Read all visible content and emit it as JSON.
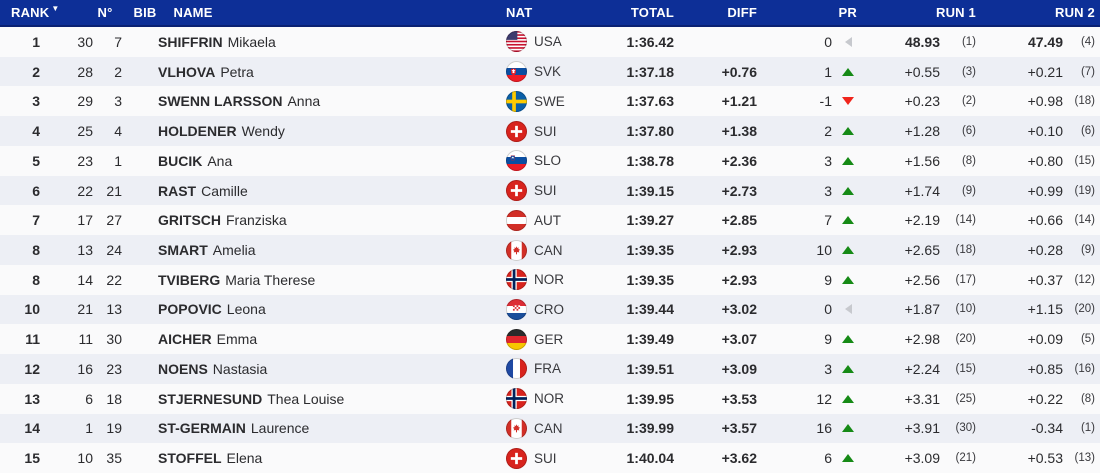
{
  "table": {
    "columns": {
      "rank": "RANK",
      "num": "N°",
      "bib": "BIB",
      "name": "NAME",
      "nat": "NAT",
      "total": "TOTAL",
      "diff": "DIFF",
      "pr": "PR",
      "run1": "RUN 1",
      "run2": "RUN 2"
    },
    "sort": {
      "column": "rank",
      "indicator": "▼"
    },
    "rows": [
      {
        "rank": "1",
        "num": "30",
        "bib": "7",
        "last": "SHIFFRIN",
        "first": "Mikaela",
        "nat": "USA",
        "total": "1:36.42",
        "diff": "",
        "pr": "0",
        "pr_dir": "neutral",
        "run1": "48.93",
        "run1_rank": "(1)",
        "run2": "47.49",
        "run2_rank": "(4)"
      },
      {
        "rank": "2",
        "num": "28",
        "bib": "2",
        "last": "VLHOVA",
        "first": "Petra",
        "nat": "SVK",
        "total": "1:37.18",
        "diff": "+0.76",
        "pr": "1",
        "pr_dir": "up",
        "run1": "+0.55",
        "run1_rank": "(3)",
        "run2": "+0.21",
        "run2_rank": "(7)"
      },
      {
        "rank": "3",
        "num": "29",
        "bib": "3",
        "last": "SWENN LARSSON",
        "first": "Anna",
        "nat": "SWE",
        "total": "1:37.63",
        "diff": "+1.21",
        "pr": "-1",
        "pr_dir": "down",
        "run1": "+0.23",
        "run1_rank": "(2)",
        "run2": "+0.98",
        "run2_rank": "(18)"
      },
      {
        "rank": "4",
        "num": "25",
        "bib": "4",
        "last": "HOLDENER",
        "first": "Wendy",
        "nat": "SUI",
        "total": "1:37.80",
        "diff": "+1.38",
        "pr": "2",
        "pr_dir": "up",
        "run1": "+1.28",
        "run1_rank": "(6)",
        "run2": "+0.10",
        "run2_rank": "(6)"
      },
      {
        "rank": "5",
        "num": "23",
        "bib": "1",
        "last": "BUCIK",
        "first": "Ana",
        "nat": "SLO",
        "total": "1:38.78",
        "diff": "+2.36",
        "pr": "3",
        "pr_dir": "up",
        "run1": "+1.56",
        "run1_rank": "(8)",
        "run2": "+0.80",
        "run2_rank": "(15)"
      },
      {
        "rank": "6",
        "num": "22",
        "bib": "21",
        "last": "RAST",
        "first": "Camille",
        "nat": "SUI",
        "total": "1:39.15",
        "diff": "+2.73",
        "pr": "3",
        "pr_dir": "up",
        "run1": "+1.74",
        "run1_rank": "(9)",
        "run2": "+0.99",
        "run2_rank": "(19)"
      },
      {
        "rank": "7",
        "num": "17",
        "bib": "27",
        "last": "GRITSCH",
        "first": "Franziska",
        "nat": "AUT",
        "total": "1:39.27",
        "diff": "+2.85",
        "pr": "7",
        "pr_dir": "up",
        "run1": "+2.19",
        "run1_rank": "(14)",
        "run2": "+0.66",
        "run2_rank": "(14)"
      },
      {
        "rank": "8",
        "num": "13",
        "bib": "24",
        "last": "SMART",
        "first": "Amelia",
        "nat": "CAN",
        "total": "1:39.35",
        "diff": "+2.93",
        "pr": "10",
        "pr_dir": "up",
        "run1": "+2.65",
        "run1_rank": "(18)",
        "run2": "+0.28",
        "run2_rank": "(9)"
      },
      {
        "rank": "8",
        "num": "14",
        "bib": "22",
        "last": "TVIBERG",
        "first": "Maria Therese",
        "nat": "NOR",
        "total": "1:39.35",
        "diff": "+2.93",
        "pr": "9",
        "pr_dir": "up",
        "run1": "+2.56",
        "run1_rank": "(17)",
        "run2": "+0.37",
        "run2_rank": "(12)"
      },
      {
        "rank": "10",
        "num": "21",
        "bib": "13",
        "last": "POPOVIC",
        "first": "Leona",
        "nat": "CRO",
        "total": "1:39.44",
        "diff": "+3.02",
        "pr": "0",
        "pr_dir": "neutral",
        "run1": "+1.87",
        "run1_rank": "(10)",
        "run2": "+1.15",
        "run2_rank": "(20)"
      },
      {
        "rank": "11",
        "num": "11",
        "bib": "30",
        "last": "AICHER",
        "first": "Emma",
        "nat": "GER",
        "total": "1:39.49",
        "diff": "+3.07",
        "pr": "9",
        "pr_dir": "up",
        "run1": "+2.98",
        "run1_rank": "(20)",
        "run2": "+0.09",
        "run2_rank": "(5)"
      },
      {
        "rank": "12",
        "num": "16",
        "bib": "23",
        "last": "NOENS",
        "first": "Nastasia",
        "nat": "FRA",
        "total": "1:39.51",
        "diff": "+3.09",
        "pr": "3",
        "pr_dir": "up",
        "run1": "+2.24",
        "run1_rank": "(15)",
        "run2": "+0.85",
        "run2_rank": "(16)"
      },
      {
        "rank": "13",
        "num": "6",
        "bib": "18",
        "last": "STJERNESUND",
        "first": "Thea Louise",
        "nat": "NOR",
        "total": "1:39.95",
        "diff": "+3.53",
        "pr": "12",
        "pr_dir": "up",
        "run1": "+3.31",
        "run1_rank": "(25)",
        "run2": "+0.22",
        "run2_rank": "(8)"
      },
      {
        "rank": "14",
        "num": "1",
        "bib": "19",
        "last": "ST-GERMAIN",
        "first": "Laurence",
        "nat": "CAN",
        "total": "1:39.99",
        "diff": "+3.57",
        "pr": "16",
        "pr_dir": "up",
        "run1": "+3.91",
        "run1_rank": "(30)",
        "run2": "-0.34",
        "run2_rank": "(1)"
      },
      {
        "rank": "15",
        "num": "10",
        "bib": "35",
        "last": "STOFFEL",
        "first": "Elena",
        "nat": "SUI",
        "total": "1:40.04",
        "diff": "+3.62",
        "pr": "6",
        "pr_dir": "up",
        "run1": "+3.09",
        "run1_rank": "(21)",
        "run2": "+0.53",
        "run2_rank": "(13)"
      }
    ]
  },
  "colors": {
    "header_bg": "#0D2F97",
    "header_border": "#0A2173",
    "header_text": "#FFFFFF",
    "row_odd_bg": "#FAFAFB",
    "row_even_bg": "#EDEFF5",
    "text": "#2B2B2E",
    "up": "#168A16",
    "down": "#F0251C",
    "neutral": "#C7C9CE"
  }
}
